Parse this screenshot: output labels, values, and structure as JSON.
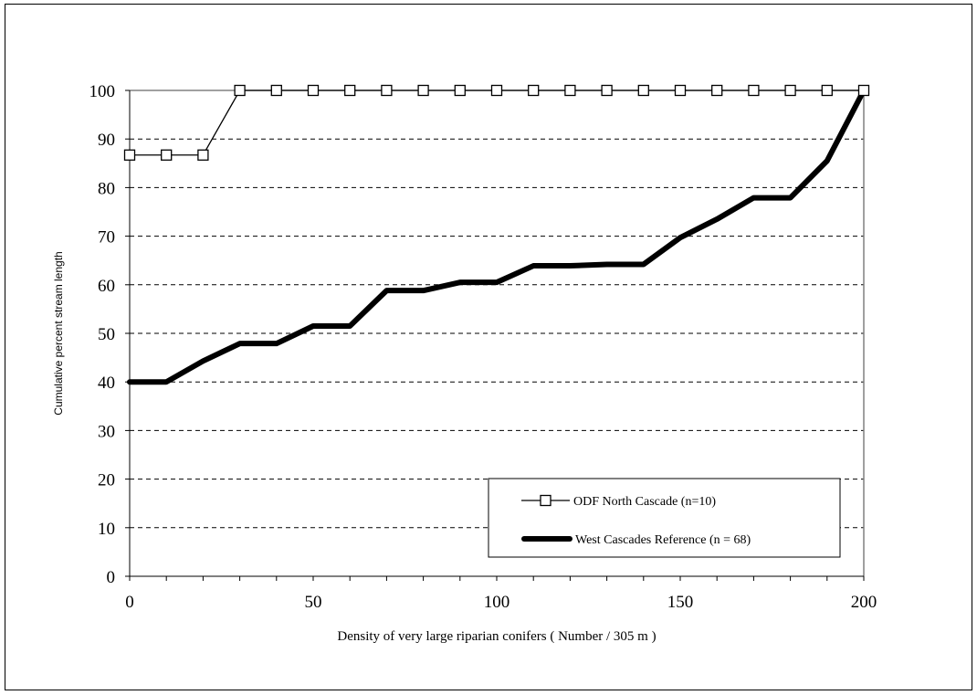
{
  "chart_data": {
    "type": "line",
    "title": "",
    "xlabel": "Density of very large riparian conifers ( Number / 305 m )",
    "ylabel": "Cumulative percent stream length",
    "xlim": [
      0,
      200
    ],
    "ylim": [
      0,
      100
    ],
    "xticks": [
      "0",
      "50",
      "100",
      "150",
      "200"
    ],
    "yticks": [
      "0",
      "10",
      "20",
      "30",
      "40",
      "50",
      "60",
      "70",
      "80",
      "90",
      "100"
    ],
    "grid": "horizontal dashed",
    "legend_position": "bottom-right",
    "x": [
      0,
      10,
      20,
      30,
      40,
      50,
      60,
      70,
      80,
      90,
      100,
      110,
      120,
      130,
      140,
      150,
      160,
      170,
      180,
      190,
      200
    ],
    "series": [
      {
        "name": "ODF North Cascade (n=10)",
        "marker": "open-square",
        "color": "#000000",
        "values": [
          86.7,
          86.7,
          86.7,
          100,
          100,
          100,
          100,
          100,
          100,
          100,
          100,
          100,
          100,
          100,
          100,
          100,
          100,
          100,
          100,
          100,
          100
        ]
      },
      {
        "name": "West Cascades Reference (n = 68)",
        "marker": "none",
        "color": "#000000",
        "values": [
          40,
          40,
          44.3,
          47.9,
          47.9,
          51.5,
          51.5,
          58.8,
          58.8,
          60.5,
          60.5,
          63.9,
          63.9,
          64.2,
          64.2,
          69.7,
          73.5,
          77.9,
          77.9,
          85.5,
          100
        ]
      }
    ]
  }
}
